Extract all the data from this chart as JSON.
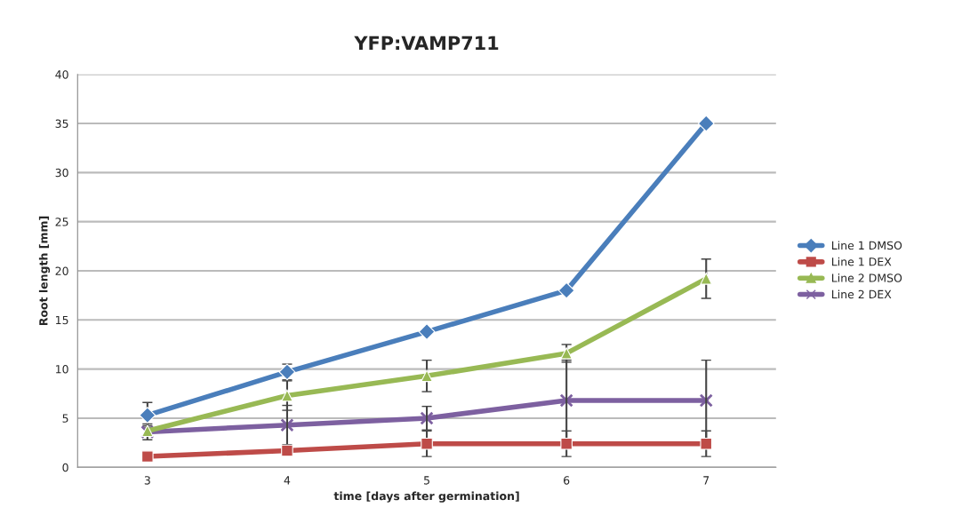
{
  "chart_data": {
    "type": "line",
    "title": "YFP:VAMP711",
    "xlabel": "time [days after germination]",
    "ylabel": "Root length [mm]",
    "categories": [
      "3",
      "4",
      "5",
      "6",
      "7"
    ],
    "series": [
      {
        "name": "Line 1 DMSO",
        "color": "#4a7ebb",
        "marker": "diamond",
        "values": [
          5.3,
          9.7,
          13.8,
          18,
          35
        ],
        "errors": [
          1.3,
          0.8,
          null,
          null,
          null
        ]
      },
      {
        "name": "Line 1 DEX",
        "color": "#be4b48",
        "marker": "square",
        "values": [
          1.1,
          1.7,
          2.4,
          2.4,
          2.4
        ],
        "errors": [
          null,
          null,
          1.3,
          1.3,
          1.3
        ]
      },
      {
        "name": "Line 2 DMSO",
        "color": "#98b954",
        "marker": "triangle",
        "values": [
          3.7,
          7.3,
          9.3,
          11.6,
          19.2
        ],
        "errors": [
          0.5,
          1.5,
          1.6,
          0.9,
          2.0
        ]
      },
      {
        "name": "Line 2 DEX",
        "color": "#7d60a0",
        "marker": "cross",
        "values": [
          3.6,
          4.3,
          5.0,
          6.8,
          6.8
        ],
        "errors": [
          0.8,
          2.0,
          1.2,
          4.1,
          4.1
        ]
      }
    ],
    "ylim": [
      0,
      40
    ],
    "yticks": [
      0,
      5,
      10,
      15,
      20,
      25,
      30,
      35,
      40
    ],
    "grid": "y",
    "legend": "right",
    "line_style": "solid"
  }
}
